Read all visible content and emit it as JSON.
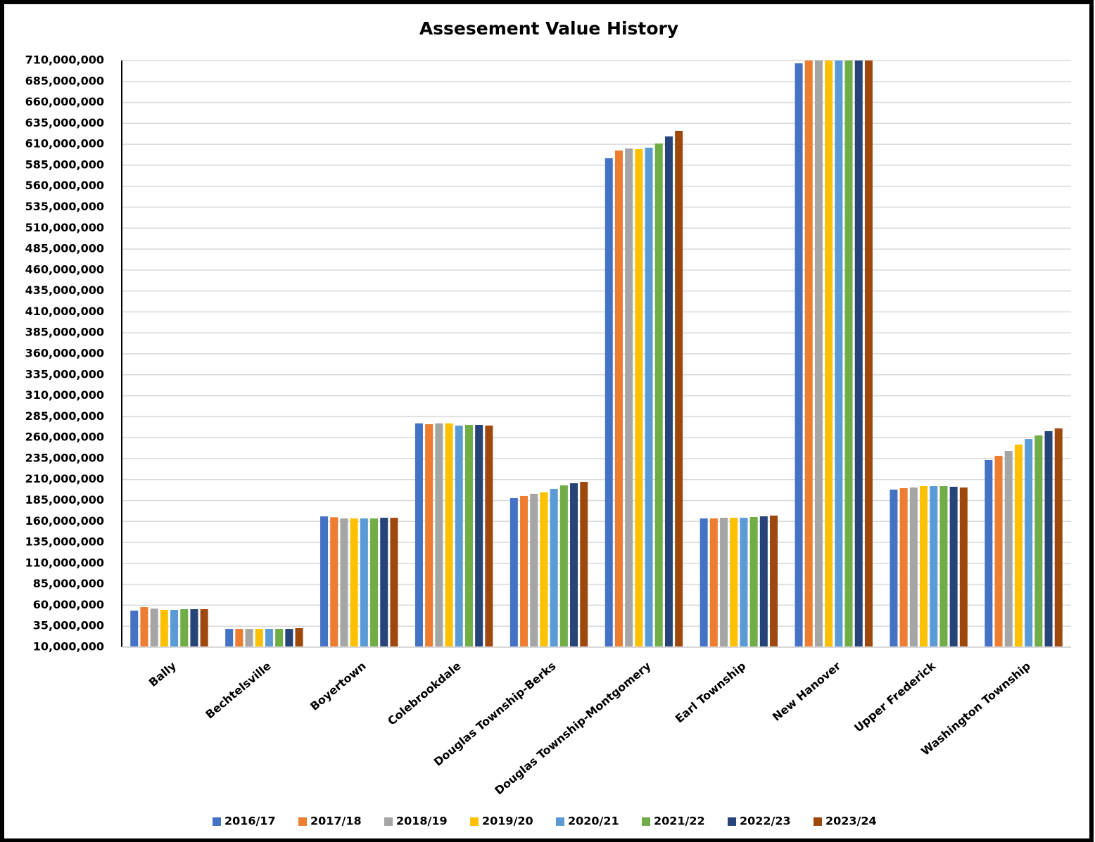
{
  "chart_data": {
    "type": "bar",
    "title": "Assesement Value History",
    "categories": [
      "Bally",
      "Bechtelsville",
      "Boyertown",
      "Colebrookdale",
      "Douglas Township-Berks",
      "Douglas Township-Montgomery",
      "Earl Township",
      "New Hanover",
      "Upper Frederick",
      "Washington Township"
    ],
    "series": [
      {
        "name": "2016/17",
        "color": "#4472c4",
        "values": [
          53600000,
          31800000,
          166000000,
          277000000,
          188000000,
          593400000,
          163600000,
          706600000,
          198000000,
          233300000
        ]
      },
      {
        "name": "2017/18",
        "color": "#ed7d31",
        "values": [
          57800000,
          31800000,
          165000000,
          276000000,
          190500000,
          602600000,
          163600000,
          710000000,
          199700000,
          238300000
        ]
      },
      {
        "name": "2018/19",
        "color": "#a5a5a5",
        "values": [
          56000000,
          31800000,
          163600000,
          277000000,
          193000000,
          605000000,
          164400000,
          710000000,
          200500000,
          244200000
        ]
      },
      {
        "name": "2019/20",
        "color": "#ffc000",
        "values": [
          54500000,
          31800000,
          163600000,
          277000000,
          194700000,
          604300000,
          164400000,
          710000000,
          202200000,
          251700000
        ]
      },
      {
        "name": "2020/21",
        "color": "#5b9bd5",
        "values": [
          54500000,
          31800000,
          163600000,
          274400000,
          198900000,
          606000000,
          164400000,
          710000000,
          202200000,
          258400000
        ]
      },
      {
        "name": "2021/22",
        "color": "#70ad47",
        "values": [
          55300000,
          31800000,
          163600000,
          275200000,
          203000000,
          611000000,
          165300000,
          710000000,
          202200000,
          262600000
        ]
      },
      {
        "name": "2022/23",
        "color": "#264478",
        "values": [
          55300000,
          31800000,
          164400000,
          275200000,
          205600000,
          619400000,
          166100000,
          710000000,
          201400000,
          267700000
        ]
      },
      {
        "name": "2023/24",
        "color": "#9e480e",
        "values": [
          55300000,
          32700000,
          164400000,
          274400000,
          207200000,
          626100000,
          167000000,
          710000000,
          200500000,
          271000000
        ]
      }
    ],
    "ylim": [
      10000000,
      710000000
    ],
    "yticks": [
      {
        "value": 10000000,
        "label": "10,000,000"
      },
      {
        "value": 35000000,
        "label": "35,000,000"
      },
      {
        "value": 60000000,
        "label": "60,000,000"
      },
      {
        "value": 85000000,
        "label": "85,000,000"
      },
      {
        "value": 110000000,
        "label": "110,000,000"
      },
      {
        "value": 135000000,
        "label": "135,000,000"
      },
      {
        "value": 160000000,
        "label": "160,000,000"
      },
      {
        "value": 185000000,
        "label": "185,000,000"
      },
      {
        "value": 210000000,
        "label": "210,000,000"
      },
      {
        "value": 235000000,
        "label": "235,000,000"
      },
      {
        "value": 260000000,
        "label": "260,000,000"
      },
      {
        "value": 285000000,
        "label": "285,000,000"
      },
      {
        "value": 310000000,
        "label": "310,000,000"
      },
      {
        "value": 335000000,
        "label": "335,000,000"
      },
      {
        "value": 360000000,
        "label": "360,000,000"
      },
      {
        "value": 385000000,
        "label": "385,000,000"
      },
      {
        "value": 410000000,
        "label": "410,000,000"
      },
      {
        "value": 435000000,
        "label": "435,000,000"
      },
      {
        "value": 460000000,
        "label": "460,000,000"
      },
      {
        "value": 485000000,
        "label": "485,000,000"
      },
      {
        "value": 510000000,
        "label": "510,000,000"
      },
      {
        "value": 535000000,
        "label": "535,000,000"
      },
      {
        "value": 560000000,
        "label": "560,000,000"
      },
      {
        "value": 585000000,
        "label": "585,000,000"
      },
      {
        "value": 610000000,
        "label": "610,000,000"
      },
      {
        "value": 635000000,
        "label": "635,000,000"
      },
      {
        "value": 660000000,
        "label": "660,000,000"
      },
      {
        "value": 685000000,
        "label": "685,000,000"
      },
      {
        "value": 710000000,
        "label": "710,000,000"
      }
    ],
    "grid": true,
    "legend": "bottom"
  }
}
